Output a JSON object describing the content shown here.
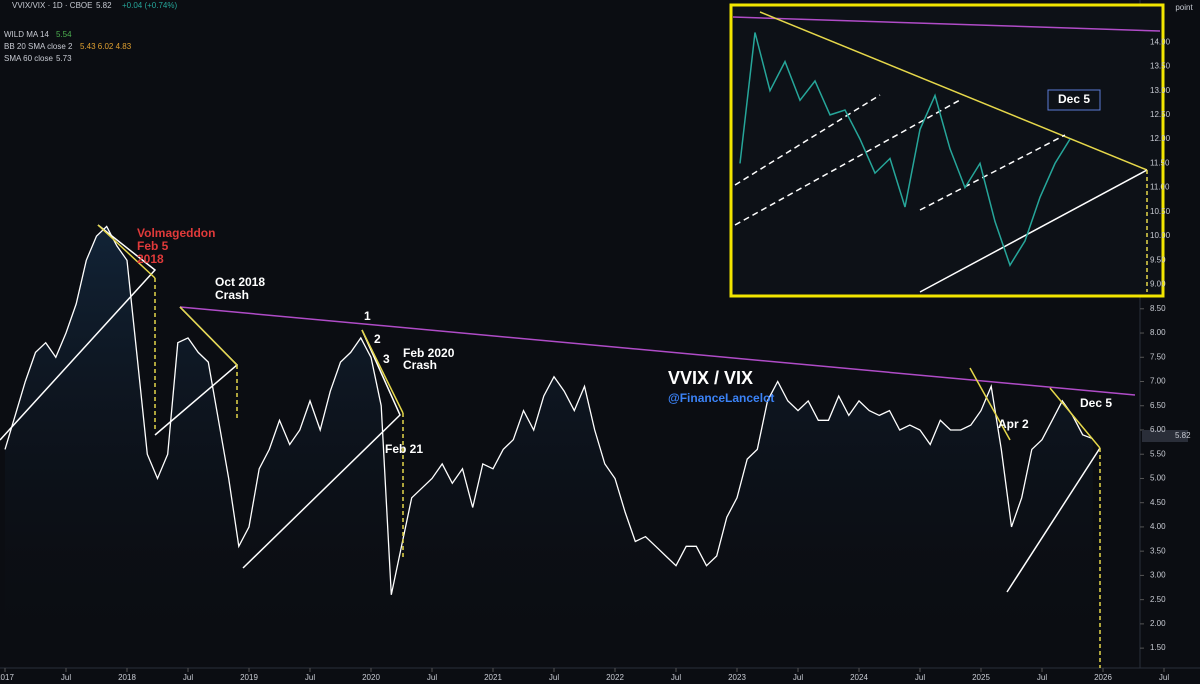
{
  "header": {
    "symbol": "VVIX/VIX · 1D · CBOE",
    "price": "5.82",
    "change": "+0.04 (+0.74%)",
    "indicators": [
      {
        "name": "WILD MA 14",
        "value": "5.54"
      },
      {
        "name": "BB 20 SMA close 2",
        "value": "5.43 6.02 4.83"
      },
      {
        "name": "SMA 60 close",
        "value": "5.73"
      }
    ],
    "axis_unit": "point",
    "last_price": "5.82"
  },
  "chart_data": {
    "type": "line",
    "title": "VVIX / VIX",
    "subtitle": "@FinanceLancelot",
    "x": [
      "2017-01",
      "2017-02",
      "2017-03",
      "2017-04",
      "2017-05",
      "2017-06",
      "2017-07",
      "2017-08",
      "2017-09",
      "2017-10",
      "2017-11",
      "2017-12",
      "2018-01",
      "2018-02",
      "2018-03",
      "2018-04",
      "2018-05",
      "2018-06",
      "2018-07",
      "2018-08",
      "2018-09",
      "2018-10",
      "2018-11",
      "2018-12",
      "2019-01",
      "2019-02",
      "2019-03",
      "2019-04",
      "2019-05",
      "2019-06",
      "2019-07",
      "2019-08",
      "2019-09",
      "2019-10",
      "2019-11",
      "2019-12",
      "2020-01",
      "2020-02",
      "2020-03",
      "2020-04",
      "2020-05",
      "2020-06",
      "2020-07",
      "2020-08",
      "2020-09",
      "2020-10",
      "2020-11",
      "2020-12",
      "2021-01",
      "2021-02",
      "2021-03",
      "2021-04",
      "2021-05",
      "2021-06",
      "2021-07",
      "2021-08",
      "2021-09",
      "2021-10",
      "2021-11",
      "2021-12",
      "2022-01",
      "2022-02",
      "2022-03",
      "2022-04",
      "2022-05",
      "2022-06",
      "2022-07",
      "2022-08",
      "2022-09",
      "2022-10",
      "2022-11",
      "2022-12",
      "2023-01",
      "2023-02",
      "2023-03",
      "2023-04",
      "2023-05",
      "2023-06",
      "2023-07",
      "2023-08",
      "2023-09",
      "2023-10",
      "2023-11",
      "2023-12",
      "2024-01",
      "2024-02",
      "2024-03",
      "2024-04",
      "2024-05",
      "2024-06",
      "2024-07",
      "2024-08",
      "2024-09",
      "2024-10",
      "2024-11",
      "2024-12",
      "2025-01",
      "2025-02",
      "2025-03",
      "2025-04",
      "2025-05",
      "2025-06",
      "2025-07",
      "2025-08",
      "2025-09",
      "2025-10",
      "2025-11",
      "2025-12"
    ],
    "series": [
      {
        "name": "VVIX/VIX",
        "color": "#ffffff",
        "values": [
          5.6,
          6.3,
          7.0,
          7.6,
          7.8,
          7.5,
          8.0,
          8.6,
          9.5,
          10.0,
          10.2,
          9.8,
          9.5,
          7.5,
          5.5,
          5.0,
          5.5,
          7.8,
          7.9,
          7.6,
          7.4,
          6.2,
          5.0,
          3.6,
          4.0,
          5.2,
          5.6,
          6.2,
          5.7,
          6.0,
          6.6,
          6.0,
          6.8,
          7.4,
          7.6,
          7.9,
          7.5,
          6.5,
          2.6,
          3.6,
          4.6,
          4.8,
          5.0,
          5.3,
          4.9,
          5.2,
          4.4,
          5.3,
          5.2,
          5.6,
          5.8,
          6.4,
          6.0,
          6.7,
          7.1,
          6.8,
          6.4,
          6.9,
          6.0,
          5.3,
          5.0,
          4.3,
          3.7,
          3.8,
          3.6,
          3.4,
          3.2,
          3.6,
          3.6,
          3.2,
          3.4,
          4.2,
          4.6,
          5.4,
          5.6,
          6.6,
          7.0,
          6.6,
          6.4,
          6.6,
          6.2,
          6.2,
          6.7,
          6.3,
          6.6,
          6.4,
          6.3,
          6.4,
          6.0,
          6.1,
          6.0,
          5.7,
          6.2,
          6.0,
          6.0,
          6.1,
          6.4,
          6.9,
          5.6,
          4.0,
          4.6,
          5.6,
          5.8,
          6.2,
          6.6,
          6.3,
          5.9,
          5.82
        ]
      }
    ],
    "inset_values": [
      11.5,
      14.2,
      13.0,
      13.6,
      12.8,
      13.2,
      12.5,
      12.6,
      12.0,
      11.3,
      11.6,
      10.6,
      12.2,
      12.9,
      11.8,
      11.0,
      11.5,
      10.3,
      9.4,
      9.9,
      10.8,
      11.5,
      12.0
    ],
    "ylim": [
      1.09,
      14.87
    ],
    "yticks": [
      {
        "value": 1.5,
        "label": "1.50"
      },
      {
        "value": 2,
        "label": "2.00"
      },
      {
        "value": 2.5,
        "label": "2.50"
      },
      {
        "value": 3,
        "label": "3.00"
      },
      {
        "value": 3.5,
        "label": "3.50"
      },
      {
        "value": 4,
        "label": "4.00"
      },
      {
        "value": 4.5,
        "label": "4.50"
      },
      {
        "value": 5,
        "label": "5.00"
      },
      {
        "value": 5.5,
        "label": "5.50"
      },
      {
        "value": 6,
        "label": "6.00"
      },
      {
        "value": 6.5,
        "label": "6.50"
      },
      {
        "value": 7,
        "label": "7.00"
      },
      {
        "value": 7.5,
        "label": "7.50"
      },
      {
        "value": 8,
        "label": "8.00"
      },
      {
        "value": 8.5,
        "label": "8.50"
      },
      {
        "value": 9,
        "label": "9.00"
      },
      {
        "value": 9.5,
        "label": "9.50"
      },
      {
        "value": 10,
        "label": "10.00"
      },
      {
        "value": 10.5,
        "label": "10.50"
      },
      {
        "value": 11,
        "label": "11.00"
      },
      {
        "value": 11.5,
        "label": "11.50"
      },
      {
        "value": 12,
        "label": "12.00"
      },
      {
        "value": 12.5,
        "label": "12.50"
      },
      {
        "value": 13,
        "label": "13.00"
      },
      {
        "value": 13.5,
        "label": "13.50"
      },
      {
        "value": 14,
        "label": "14.00"
      }
    ],
    "xticks": [
      {
        "value": "2017-01",
        "label": "2017"
      },
      {
        "value": "2017-07",
        "label": "Jul"
      },
      {
        "value": "2018-01",
        "label": "2018"
      },
      {
        "value": "2018-07",
        "label": "Jul"
      },
      {
        "value": "2019-01",
        "label": "2019"
      },
      {
        "value": "2019-07",
        "label": "Jul"
      },
      {
        "value": "2020-01",
        "label": "2020"
      },
      {
        "value": "2020-07",
        "label": "Jul"
      },
      {
        "value": "2021-01",
        "label": "2021"
      },
      {
        "value": "2021-07",
        "label": "Jul"
      },
      {
        "value": "2022-01",
        "label": "2022"
      },
      {
        "value": "2022-07",
        "label": "Jul"
      },
      {
        "value": "2023-01",
        "label": "2023"
      },
      {
        "value": "2023-07",
        "label": "Jul"
      },
      {
        "value": "2024-01",
        "label": "2024"
      },
      {
        "value": "2024-07",
        "label": "Jul"
      },
      {
        "value": "2025-01",
        "label": "2025"
      },
      {
        "value": "2025-07",
        "label": "Jul"
      },
      {
        "value": "2026-01",
        "label": "2026"
      },
      {
        "value": "2026-07",
        "label": "Jul"
      }
    ],
    "annotations": [
      "Volmageddon",
      "Feb 5",
      "2018",
      "Oct 2018",
      "Crash",
      "1",
      "2",
      "3",
      "Feb 2020",
      "Crash",
      "Feb 21",
      "Apr 2",
      "Dec 5",
      "Dec 5"
    ]
  }
}
